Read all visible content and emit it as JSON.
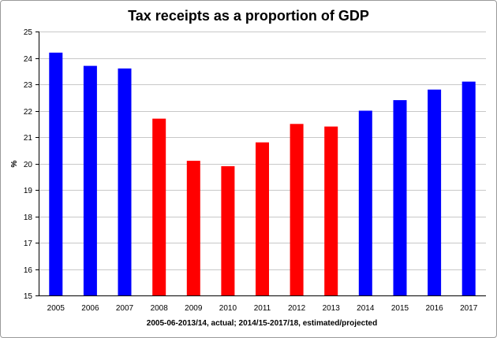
{
  "chart_data": {
    "type": "bar",
    "title": "Tax receipts as a proportion of GDP",
    "xlabel": "2005-06-2013/14, actual; 2014/15-2017/18, estimated/projected",
    "ylabel": "%",
    "ylim": [
      15,
      25
    ],
    "yticks": [
      "15",
      "16",
      "17",
      "18",
      "19",
      "20",
      "21",
      "22",
      "23",
      "24",
      "25"
    ],
    "grid": true,
    "categories": [
      "2005",
      "2006",
      "2007",
      "2008",
      "2009",
      "2010",
      "2011",
      "2012",
      "2013",
      "2014",
      "2015",
      "2016",
      "2017"
    ],
    "values": [
      24.2,
      23.7,
      23.6,
      21.7,
      20.1,
      19.9,
      20.8,
      21.5,
      21.4,
      22.0,
      22.4,
      22.8,
      23.1
    ],
    "bar_colors": [
      "#0000ff",
      "#0000ff",
      "#0000ff",
      "#ff0000",
      "#ff0000",
      "#ff0000",
      "#ff0000",
      "#ff0000",
      "#ff0000",
      "#0000ff",
      "#0000ff",
      "#0000ff",
      "#0000ff"
    ]
  }
}
